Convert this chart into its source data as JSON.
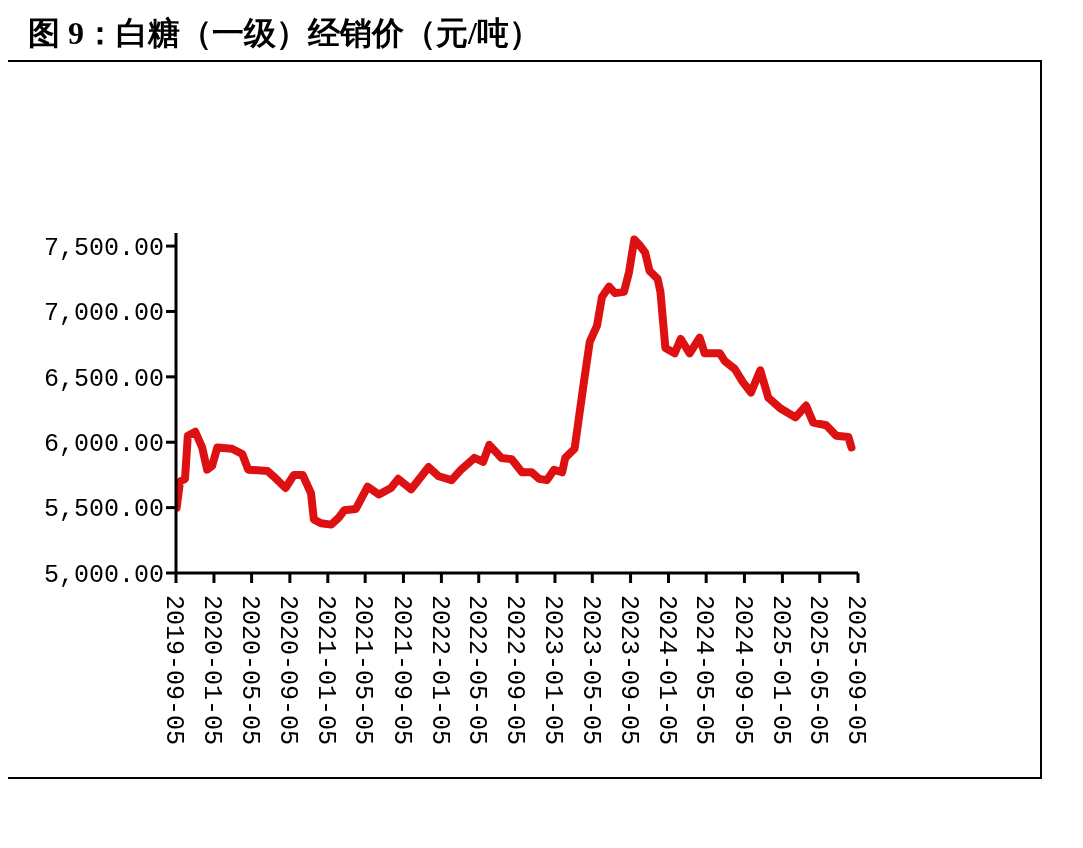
{
  "chart_data": {
    "type": "line",
    "title": "图 9：白糖（一级）经销价（元/吨）",
    "x": [
      "2019-09-07",
      "2019-09-18",
      "2019-10-04",
      "2019-10-13",
      "2019-11-06",
      "2019-11-28",
      "2019-12-14",
      "2019-12-30",
      "2020-01-16",
      "2020-03-03",
      "2020-04-05",
      "2020-04-24",
      "2020-06-25",
      "2020-07-14",
      "2020-08-22",
      "2020-09-18",
      "2020-10-16",
      "2020-11-12",
      "2020-11-21",
      "2020-12-14",
      "2021-01-16",
      "2021-02-08",
      "2021-02-27",
      "2021-04-05",
      "2021-05-13",
      "2021-06-18",
      "2021-07-27",
      "2021-08-19",
      "2021-09-30",
      "2021-11-25",
      "2021-12-27",
      "2022-02-07",
      "2022-03-09",
      "2022-04-21",
      "2022-05-19",
      "2022-06-08",
      "2022-07-17",
      "2022-08-19",
      "2022-09-21",
      "2022-10-22",
      "2022-11-15",
      "2022-12-10",
      "2023-01-02",
      "2023-01-28",
      "2023-02-07",
      "2023-03-09",
      "2023-03-22",
      "2023-04-08",
      "2023-04-27",
      "2023-05-20",
      "2023-06-05",
      "2023-06-28",
      "2023-07-17",
      "2023-08-15",
      "2023-08-31",
      "2023-09-17",
      "2023-10-03",
      "2023-10-22",
      "2023-11-05",
      "2023-12-01",
      "2023-12-10",
      "2023-12-26",
      "2024-01-25",
      "2024-02-13",
      "2024-03-13",
      "2024-04-14",
      "2024-04-30",
      "2024-06-18",
      "2024-07-04",
      "2024-08-05",
      "2024-08-31",
      "2024-09-26",
      "2024-10-26",
      "2024-11-21",
      "2024-12-29",
      "2025-02-16",
      "2025-03-22",
      "2025-04-14",
      "2025-05-26",
      "2025-06-27",
      "2025-08-05",
      "2025-08-15"
    ],
    "series": [
      {
        "color": "#dd1111",
        "values": [
          5500,
          5700,
          5720,
          6050,
          6080,
          5960,
          5790,
          5820,
          5960,
          5950,
          5910,
          5790,
          5780,
          5740,
          5650,
          5750,
          5750,
          5610,
          5410,
          5380,
          5370,
          5420,
          5480,
          5490,
          5660,
          5600,
          5650,
          5720,
          5640,
          5810,
          5740,
          5710,
          5790,
          5880,
          5850,
          5980,
          5880,
          5870,
          5770,
          5770,
          5720,
          5710,
          5790,
          5770,
          5880,
          5950,
          6170,
          6460,
          6770,
          6890,
          7110,
          7190,
          7140,
          7150,
          7300,
          7550,
          7510,
          7450,
          7310,
          7250,
          7150,
          6720,
          6680,
          6790,
          6680,
          6800,
          6680,
          6680,
          6620,
          6560,
          6460,
          6380,
          6550,
          6340,
          6260,
          6190,
          6280,
          6150,
          6130,
          6050,
          6040,
          5960
        ]
      }
    ],
    "xlim": [
      "2019-09-05",
      "2025-09-05"
    ],
    "xticks": [
      "2019-09-05",
      "2020-01-05",
      "2020-05-05",
      "2020-09-05",
      "2021-01-05",
      "2021-05-05",
      "2021-09-05",
      "2022-01-05",
      "2022-05-05",
      "2022-09-05",
      "2023-01-05",
      "2023-05-05",
      "2023-09-05",
      "2024-01-05",
      "2024-05-05",
      "2024-09-05",
      "2025-01-05",
      "2025-05-05",
      "2025-09-05"
    ],
    "ylim": [
      5000,
      7600
    ],
    "yticks": [
      {
        "value": 5000,
        "label": "5,000.00"
      },
      {
        "value": 5500,
        "label": "5,500.00"
      },
      {
        "value": 6000,
        "label": "6,000.00"
      },
      {
        "value": 6500,
        "label": "6,500.00"
      },
      {
        "value": 7000,
        "label": "7,000.00"
      },
      {
        "value": 7500,
        "label": "7,500.00"
      }
    ]
  }
}
